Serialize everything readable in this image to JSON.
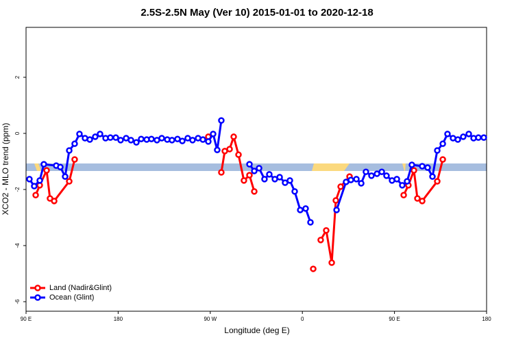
{
  "chart_data": {
    "type": "line",
    "title": "2.5S-2.5N May (Ver 10)   2015-01-01 to 2020-12-18",
    "x_label": "Longitude (deg E)",
    "y_label": "XCO2 - MLO trend (ppm)",
    "xlim": [
      90,
      540
    ],
    "ylim": [
      -6.34,
      3.78
    ],
    "xticks": [
      {
        "value": 90,
        "label": "90 E"
      },
      180,
      {
        "value": 270,
        "label": "90 W"
      },
      {
        "value": 360,
        "label": "0"
      },
      {
        "value": 450,
        "label": "90 E"
      },
      {
        "value": 540,
        "label": "180"
      }
    ],
    "yticks": [
      -6,
      -4,
      -2,
      0,
      2
    ],
    "legend": "bottom-left",
    "series": [
      {
        "name": "Land (Nadir&Glint)",
        "color": "#ff0000",
        "x": [
          99.4,
          103.4,
          110.1,
          113.4,
          117.5,
          132.2,
          137.5,
          null,
          268.1,
          null,
          280.8,
          284.2,
          288.9,
          292.9,
          297.6,
          302.9,
          308.3,
          313.0,
          null,
          370.6,
          null,
          377.9,
          383.3,
          388.7,
          392.7,
          397.4,
          406.1,
          null,
          459.0,
          463.6,
          469.0,
          472.4,
          477.1,
          491.8,
          497.2
        ],
        "values": [
          -2.2,
          -1.85,
          -1.32,
          -2.32,
          -2.41,
          -1.71,
          -0.93,
          null,
          -0.12,
          null,
          -1.39,
          -0.63,
          -0.56,
          -0.12,
          -0.76,
          -1.68,
          -1.49,
          -2.07,
          null,
          -4.83,
          null,
          -3.8,
          -3.46,
          -4.61,
          -2.39,
          -1.9,
          -1.54,
          null,
          -2.2,
          -1.85,
          -1.32,
          -2.32,
          -2.41,
          -1.71,
          -0.93
        ]
      },
      {
        "name": "Ocean (Glint)",
        "color": "#0000ff",
        "x": [
          93.3,
          98.0,
          103.4,
          107.4,
          119.5,
          123.5,
          128.2,
          132.2,
          137.5,
          142.2,
          147.6,
          152.3,
          157.6,
          162.3,
          167.7,
          172.4,
          177.7,
          182.4,
          187.8,
          192.5,
          197.8,
          202.5,
          207.9,
          212.5,
          217.9,
          222.6,
          228.0,
          232.6,
          238.0,
          242.7,
          248.0,
          252.7,
          258.1,
          262.8,
          268.1,
          272.8,
          276.8,
          280.8,
          null,
          308.3,
          313.0,
          317.7,
          323.0,
          327.7,
          333.1,
          337.8,
          343.1,
          347.8,
          352.5,
          357.9,
          363.2,
          367.9,
          null,
          393.4,
          402.7,
          407.4,
          412.8,
          417.5,
          422.1,
          427.5,
          432.9,
          437.6,
          442.2,
          447.6,
          452.3,
          457.6,
          462.3,
          467.0,
          477.1,
          482.4,
          487.1,
          491.8,
          497.2,
          501.8,
          507.2,
          511.9,
          517.2,
          522.6,
          527.3,
          532.0,
          537.3
        ],
        "values": [
          -1.63,
          -1.88,
          -1.68,
          -1.1,
          -1.15,
          -1.2,
          -1.54,
          -0.61,
          -0.37,
          -0.02,
          -0.17,
          -0.22,
          -0.12,
          -0.02,
          -0.17,
          -0.15,
          -0.15,
          -0.24,
          -0.17,
          -0.24,
          -0.32,
          -0.2,
          -0.22,
          -0.2,
          -0.24,
          -0.17,
          -0.22,
          -0.24,
          -0.2,
          -0.27,
          -0.17,
          -0.24,
          -0.17,
          -0.22,
          -0.29,
          -0.02,
          -0.59,
          0.46,
          null,
          -1.1,
          -1.34,
          -1.24,
          -1.63,
          -1.46,
          -1.63,
          -1.56,
          -1.76,
          -1.68,
          -2.07,
          -2.73,
          -2.68,
          -3.17,
          null,
          -2.73,
          -1.73,
          -1.66,
          -1.63,
          -1.78,
          -1.37,
          -1.51,
          -1.44,
          -1.37,
          -1.51,
          -1.68,
          -1.63,
          -1.85,
          -1.71,
          -1.12,
          -1.17,
          -1.22,
          -1.54,
          -0.61,
          -0.37,
          -0.02,
          -0.17,
          -0.22,
          -0.12,
          -0.02,
          -0.17,
          -0.15,
          -0.15
        ]
      }
    ]
  }
}
